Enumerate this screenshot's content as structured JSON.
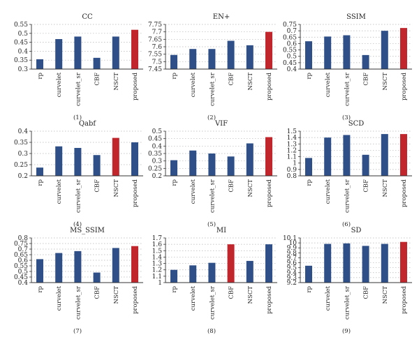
{
  "colors": {
    "default_bar": "#2e4f88",
    "highlight_bar": "#c0262c",
    "grid": "#b5b5b5",
    "axis": "#333333"
  },
  "chart_data": [
    {
      "type": "bar",
      "title": "CC",
      "subtitle": "(1)",
      "grid": true,
      "categories": [
        "rp",
        "curvelet",
        "curvelet_sr",
        "CBF",
        "NSCT",
        "proposed"
      ],
      "values": [
        0.355,
        0.468,
        0.482,
        0.363,
        0.482,
        0.52
      ],
      "highlight": "proposed",
      "ylim": [
        0.3,
        0.55
      ],
      "yticks": [
        "0.3",
        "0.35",
        "0.4",
        "0.45",
        "0.5",
        "0.55"
      ]
    },
    {
      "type": "bar",
      "title": "EN+",
      "subtitle": "(2)",
      "grid": true,
      "categories": [
        "rp",
        "curvelet",
        "curvelet_sr",
        "CBF",
        "NSCT",
        "proposed"
      ],
      "values": [
        7.545,
        7.585,
        7.585,
        7.64,
        7.61,
        7.7
      ],
      "highlight": "proposed",
      "ylim": [
        7.45,
        7.75
      ],
      "yticks": [
        "7.45",
        "7.5",
        "7.55",
        "7.6",
        "7.65",
        "7.7",
        "7.75"
      ]
    },
    {
      "type": "bar",
      "title": "SSIM",
      "subtitle": "(3)",
      "grid": true,
      "categories": [
        "rp",
        "curvelet",
        "curvelet_sr",
        "CBF",
        "NSCT",
        "proposed"
      ],
      "values": [
        0.618,
        0.655,
        0.665,
        0.51,
        0.7,
        0.722
      ],
      "highlight": "proposed",
      "ylim": [
        0.4,
        0.75
      ],
      "yticks": [
        "0.4",
        "0.45",
        "0.5",
        "0.55",
        "0.6",
        "0.65",
        "0.7",
        "0.75"
      ]
    },
    {
      "type": "bar",
      "title": "Qabf",
      "subtitle": "(4)",
      "grid": true,
      "categories": [
        "rp",
        "curvelet",
        "curvelet_sr",
        "CBF",
        "NSCT",
        "proposed"
      ],
      "values": [
        0.237,
        0.332,
        0.325,
        0.293,
        0.37,
        0.35
      ],
      "highlight": "NSCT",
      "ylim": [
        0.2,
        0.4
      ],
      "yticks": [
        "0.2",
        "0.25",
        "0.3",
        "0.35",
        "0.4"
      ]
    },
    {
      "type": "bar",
      "title": "VIF",
      "subtitle": "(5)",
      "grid": true,
      "categories": [
        "rp",
        "curvelet",
        "curvelet_sr",
        "CBF",
        "NSCT",
        "proposed"
      ],
      "values": [
        0.305,
        0.37,
        0.35,
        0.33,
        0.418,
        0.46
      ],
      "highlight": "proposed",
      "ylim": [
        0.2,
        0.5
      ],
      "yticks": [
        "0.2",
        "0.25",
        "0.3",
        "0.35",
        "0.4",
        "0.45",
        "0.5"
      ]
    },
    {
      "type": "bar",
      "title": "SCD",
      "subtitle": "(6)",
      "grid": true,
      "categories": [
        "rp",
        "curvelet",
        "curvelet_sr",
        "CBF",
        "NSCT",
        "proposed"
      ],
      "values": [
        1.08,
        1.4,
        1.44,
        1.13,
        1.455,
        1.455
      ],
      "highlight": "proposed",
      "ylim": [
        0.8,
        1.5
      ],
      "yticks": [
        "0.8",
        "0.9",
        "1",
        "1.1",
        "1.2",
        "1.3",
        "1.4",
        "1.5"
      ]
    },
    {
      "type": "bar",
      "title": "MS_SSIM",
      "subtitle": "(7)",
      "grid": true,
      "categories": [
        "rp",
        "curvelet",
        "curvelet_sr",
        "CBF",
        "NSCT",
        "proposed"
      ],
      "values": [
        0.61,
        0.665,
        0.682,
        0.49,
        0.71,
        0.727
      ],
      "highlight": "proposed",
      "ylim": [
        0.4,
        0.8
      ],
      "yticks": [
        "0.4",
        "0.45",
        "0.5",
        "0.55",
        "0.6",
        "0.65",
        "0.7",
        "0.75",
        "0.8"
      ]
    },
    {
      "type": "bar",
      "title": "MI",
      "subtitle": "(8)",
      "grid": true,
      "categories": [
        "rp",
        "curvelet",
        "curvelet_sr",
        "CBF",
        "NSCT",
        "proposed"
      ],
      "values": [
        1.2,
        1.27,
        1.31,
        1.6,
        1.34,
        1.6
      ],
      "highlight": "CBF",
      "ylim": [
        1,
        1.7
      ],
      "yticks": [
        "1",
        "1.1",
        "1.2",
        "1.3",
        "1.4",
        "1.5",
        "1.6",
        "1.7"
      ]
    },
    {
      "type": "bar",
      "title": "SD",
      "subtitle": "(9)",
      "grid": true,
      "categories": [
        "rp",
        "curvelet",
        "curvelet_sr",
        "CBF",
        "NSCT",
        "proposed"
      ],
      "values": [
        9.54,
        9.98,
        9.99,
        9.94,
        9.98,
        10.02
      ],
      "highlight": "proposed",
      "ylim": [
        9.2,
        10.1
      ],
      "yticks": [
        "9.2",
        "9.3",
        "9.4",
        "9.5",
        "9.6",
        "9.7",
        "9.8",
        "9.9",
        "10",
        "10.1"
      ]
    }
  ]
}
